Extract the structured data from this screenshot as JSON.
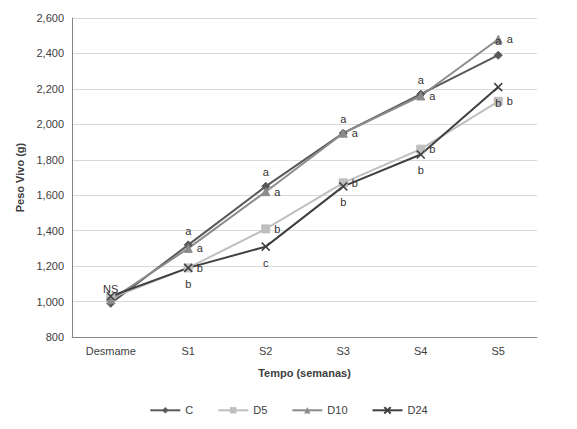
{
  "chart_data": {
    "type": "line",
    "x_label": "Tempo (semanas)",
    "y_label": "Peso Vivo (g)",
    "categories": [
      "Desmame",
      "S1",
      "S2",
      "S3",
      "S4",
      "S5"
    ],
    "ylim": [
      800,
      2600
    ],
    "yticks": [
      800,
      1000,
      1200,
      1400,
      1600,
      1800,
      2000,
      2200,
      2400,
      2600
    ],
    "grid": true,
    "legend": "bottom",
    "series": [
      {
        "name": "C",
        "color": "#595959",
        "marker": "diamond",
        "values": [
          990,
          1320,
          1650,
          1950,
          2170,
          2390
        ],
        "point_labels": [
          "NS",
          "a",
          "a",
          "a",
          "a",
          "a"
        ]
      },
      {
        "name": "D5",
        "color": "#bfbfbf",
        "marker": "square",
        "values": [
          1020,
          1190,
          1410,
          1670,
          1860,
          2130
        ],
        "point_labels": [
          null,
          "b",
          "b",
          "b",
          "b",
          "b"
        ]
      },
      {
        "name": "D10",
        "color": "#8c8c8c",
        "marker": "triangle",
        "values": [
          1010,
          1300,
          1620,
          1950,
          2160,
          2480
        ],
        "point_labels": [
          null,
          "a",
          "a",
          "a",
          "a",
          "a"
        ]
      },
      {
        "name": "D24",
        "color": "#404040",
        "marker": "x",
        "values": [
          1030,
          1190,
          1310,
          1650,
          1830,
          2210
        ],
        "point_labels": [
          null,
          "b",
          "c",
          "b",
          "b",
          "b"
        ]
      }
    ]
  }
}
